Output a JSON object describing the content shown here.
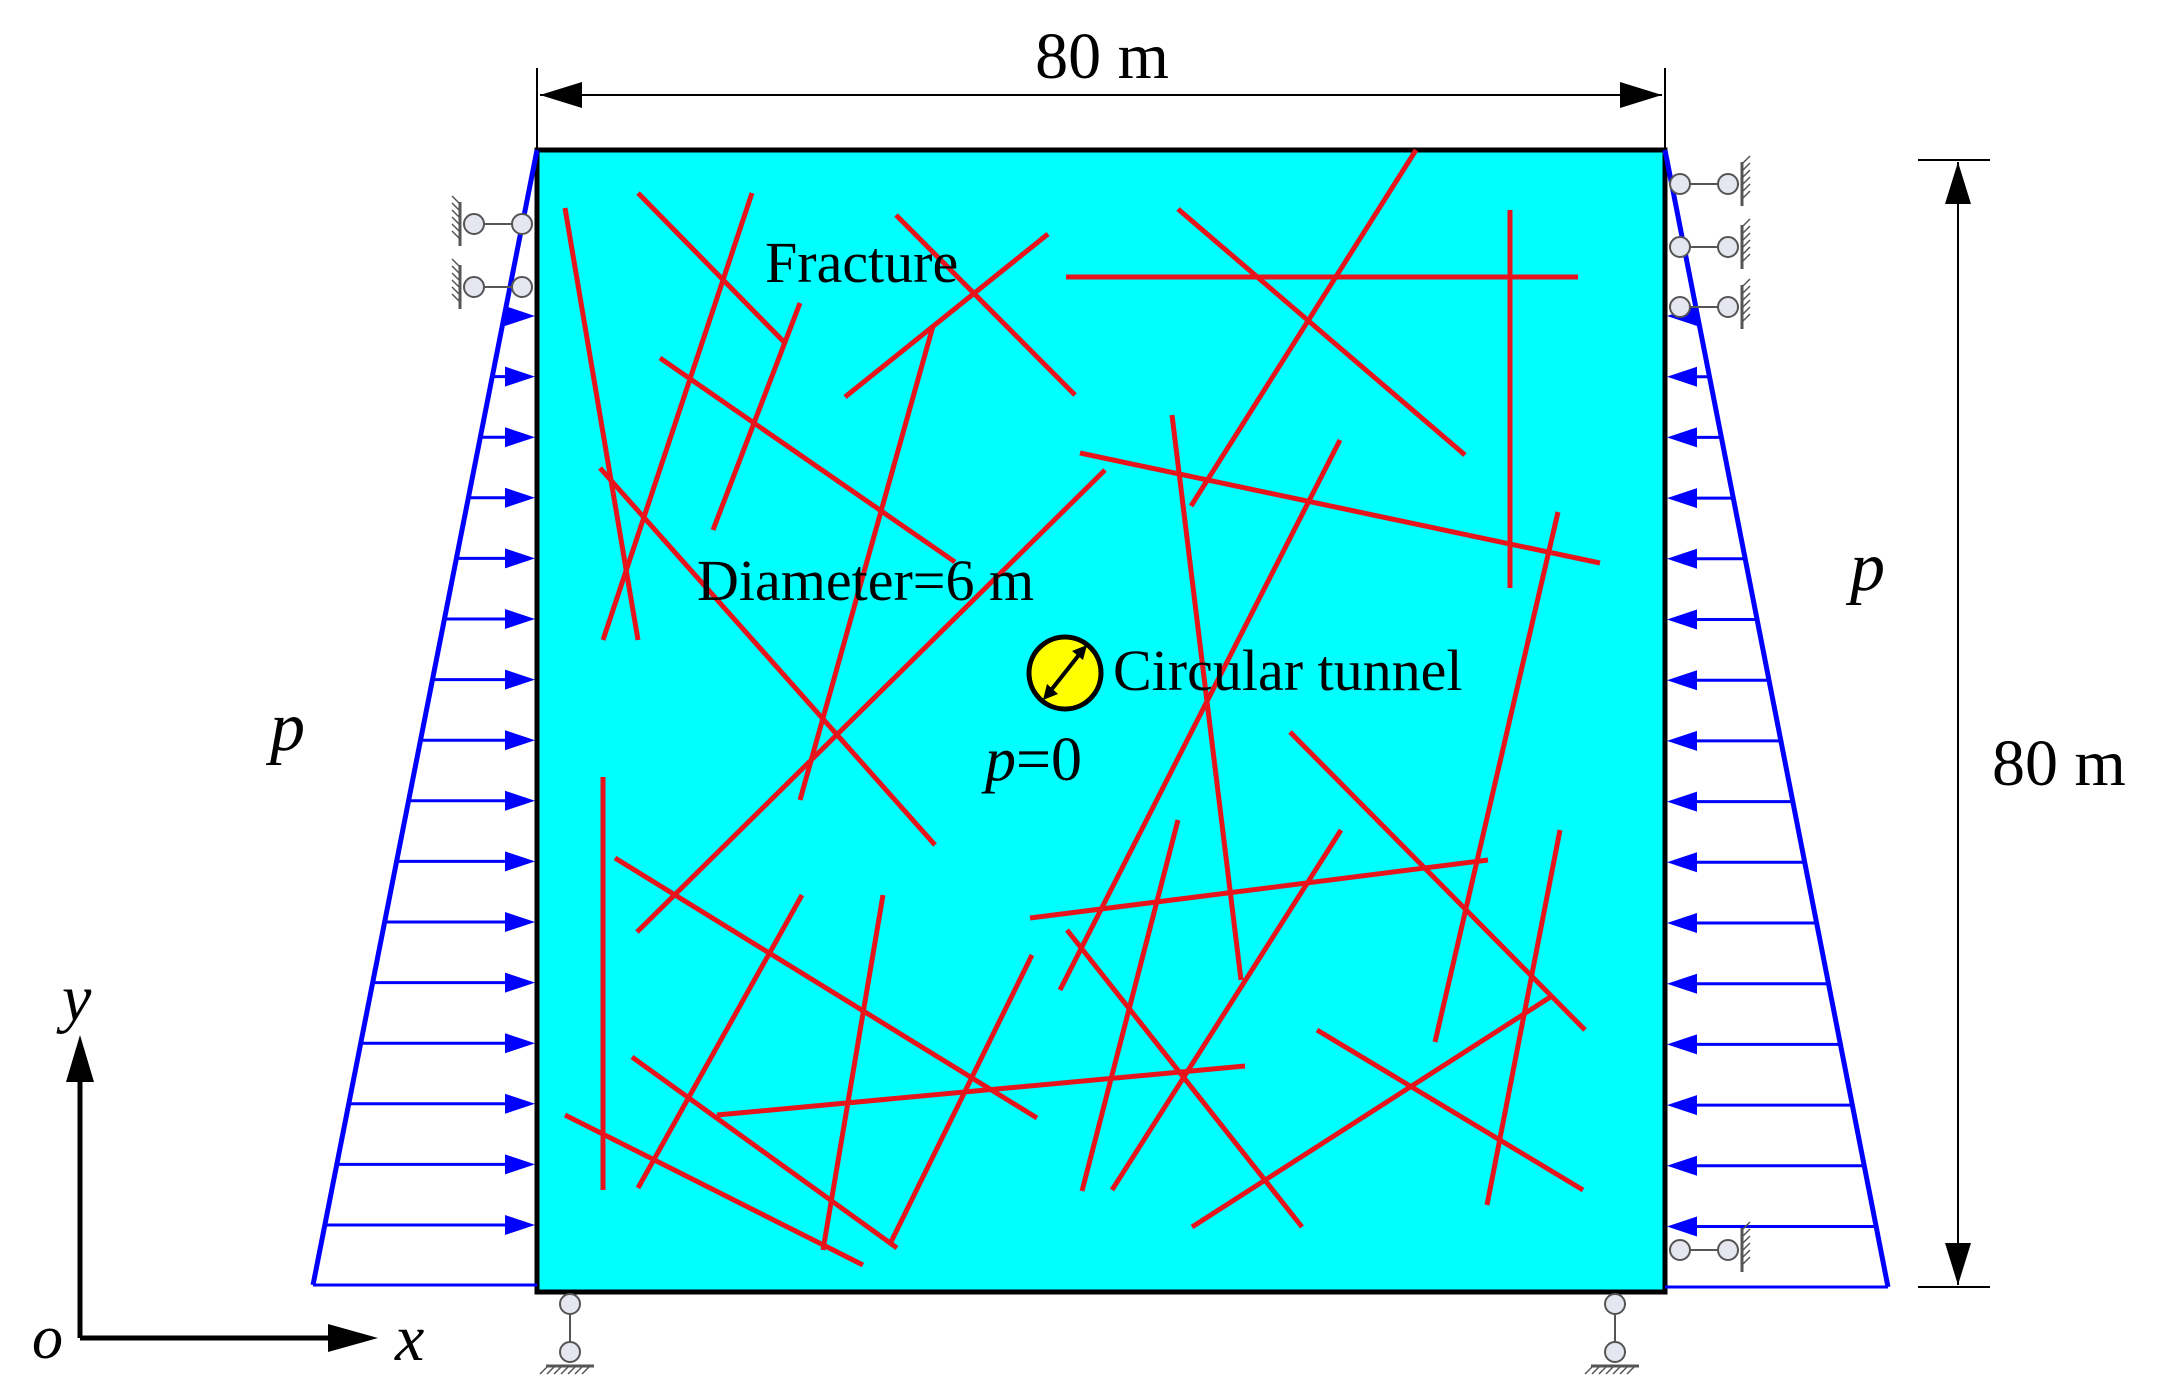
{
  "labels": {
    "width": "80 m",
    "height": "80 m",
    "fracture": "Fracture",
    "diameter": "Diameter=6 m",
    "tunnel": "Circular tunnel",
    "p_left": "p",
    "p_right": "p",
    "p_inside_var": "p",
    "p_inside_val": "=0",
    "axis_y": "y",
    "axis_x": "x",
    "origin": "o"
  },
  "colors": {
    "domain_fill": "#00FFFF",
    "fracture": "#E8141C",
    "load": "#0000FF",
    "tunnel": "#FFFF00",
    "outline": "#000000"
  }
}
